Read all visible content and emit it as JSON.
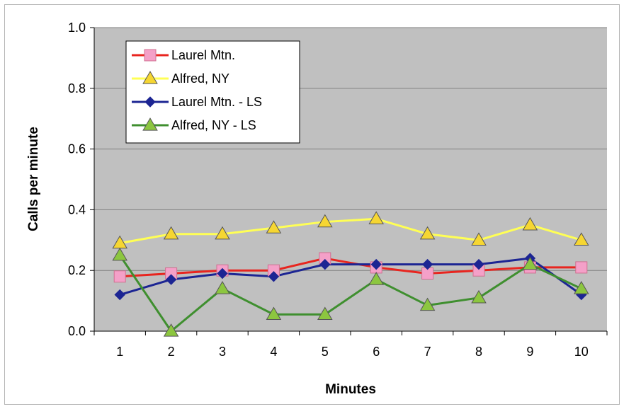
{
  "chart_data": {
    "type": "line",
    "title": "",
    "xlabel": "Minutes",
    "ylabel": "Calls per minute",
    "categories": [
      "1",
      "2",
      "3",
      "4",
      "5",
      "6",
      "7",
      "8",
      "9",
      "10"
    ],
    "ylim": [
      0,
      1.0
    ],
    "yticks": [
      "0.0",
      "0.2",
      "0.4",
      "0.6",
      "0.8",
      "1.0"
    ],
    "grid": true,
    "legend_position": "top-left",
    "plot_background": "#c0c0c0",
    "series": [
      {
        "name": "Laurel Mtn.",
        "line_color": "#e8251f",
        "marker": "square",
        "marker_color": "#f4a0c8",
        "values": [
          0.18,
          0.19,
          0.2,
          0.2,
          0.24,
          0.21,
          0.19,
          0.2,
          0.21,
          0.21
        ]
      },
      {
        "name": "Alfred, NY",
        "line_color": "#ffff55",
        "marker": "triangle",
        "marker_color": "#f6d632",
        "values": [
          0.29,
          0.32,
          0.32,
          0.34,
          0.36,
          0.37,
          0.32,
          0.3,
          0.35,
          0.3
        ]
      },
      {
        "name": "Laurel Mtn. - LS",
        "line_color": "#1c2593",
        "marker": "diamond",
        "marker_color": "#1c2593",
        "values": [
          0.12,
          0.17,
          0.19,
          0.18,
          0.22,
          0.22,
          0.22,
          0.22,
          0.24,
          0.12
        ]
      },
      {
        "name": "Alfred, NY - LS",
        "line_color": "#3f8f2f",
        "marker": "triangle",
        "marker_color": "#8cc63f",
        "values": [
          0.25,
          0.0,
          0.14,
          0.055,
          0.055,
          0.17,
          0.085,
          0.11,
          0.22,
          0.14
        ]
      }
    ]
  }
}
